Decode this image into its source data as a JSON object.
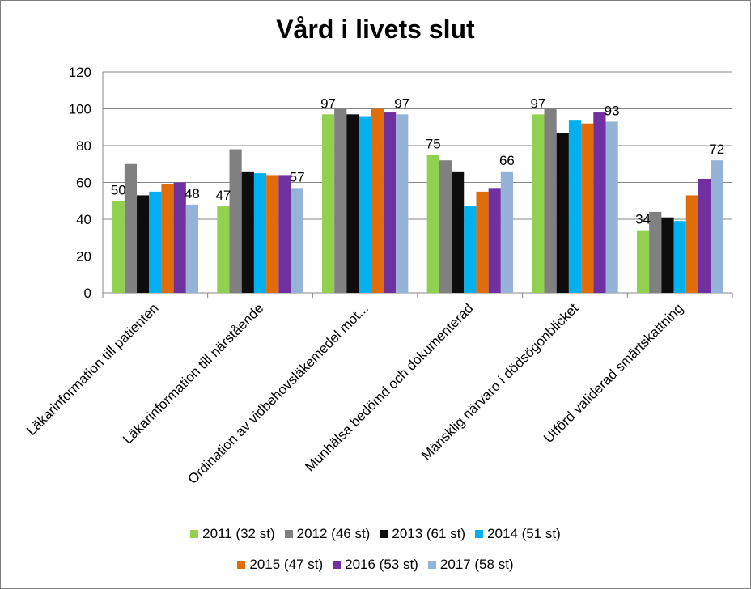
{
  "chart_data": {
    "type": "bar",
    "title": "Vård i livets slut",
    "xlabel": "",
    "ylabel": "",
    "ylim": [
      0,
      120
    ],
    "yticks": [
      0,
      20,
      40,
      60,
      80,
      100,
      120
    ],
    "grid": true,
    "legend_position": "bottom",
    "categories": [
      "Läkarinformation till patienten",
      "Läkarinformation till närstående",
      "Ordination av vidbehovsläkemedel mot...",
      "Munhälsa bedömd och dokumenterad",
      "Mänsklig närvaro i dödsögonblicket",
      "Utförd validerad smärtskattning"
    ],
    "series": [
      {
        "name": "2011 (32 st)",
        "color": "#92d050",
        "values": [
          50,
          47,
          97,
          75,
          97,
          34
        ]
      },
      {
        "name": "2012 (46 st)",
        "color": "#808080",
        "values": [
          70,
          78,
          100,
          72,
          100,
          44
        ]
      },
      {
        "name": "2013 (61 st)",
        "color": "#0d0d0d",
        "values": [
          53,
          66,
          97,
          66,
          87,
          41
        ]
      },
      {
        "name": "2014 (51 st)",
        "color": "#00b0f0",
        "values": [
          55,
          65,
          96,
          47,
          94,
          39
        ]
      },
      {
        "name": "2015 (47 st)",
        "color": "#e36c0a",
        "values": [
          59,
          64,
          100,
          55,
          92,
          53
        ]
      },
      {
        "name": "2016 (53 st)",
        "color": "#7030a0",
        "values": [
          60,
          64,
          98,
          57,
          98,
          62
        ]
      },
      {
        "name": "2017 (58 st)",
        "color": "#95b3d7",
        "values": [
          48,
          57,
          97,
          66,
          93,
          72
        ]
      }
    ],
    "data_labels": [
      {
        "series": 0,
        "category": 0,
        "text": "50"
      },
      {
        "series": 6,
        "category": 0,
        "text": "48"
      },
      {
        "series": 0,
        "category": 1,
        "text": "47"
      },
      {
        "series": 6,
        "category": 1,
        "text": "57"
      },
      {
        "series": 0,
        "category": 2,
        "text": "97"
      },
      {
        "series": 6,
        "category": 2,
        "text": "97"
      },
      {
        "series": 0,
        "category": 3,
        "text": "75"
      },
      {
        "series": 6,
        "category": 3,
        "text": "66"
      },
      {
        "series": 0,
        "category": 4,
        "text": "97"
      },
      {
        "series": 6,
        "category": 4,
        "text": "93"
      },
      {
        "series": 0,
        "category": 5,
        "text": "34"
      },
      {
        "series": 6,
        "category": 5,
        "text": "72"
      }
    ]
  }
}
